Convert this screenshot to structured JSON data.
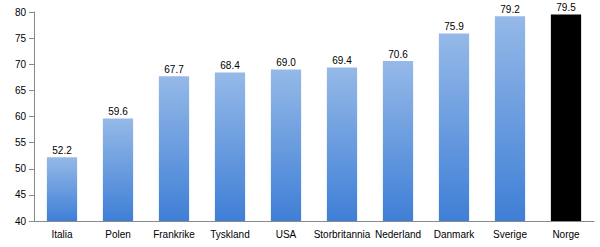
{
  "chart_data": {
    "type": "bar",
    "categories": [
      "Italia",
      "Polen",
      "Frankrike",
      "Tyskland",
      "USA",
      "Storbritannia",
      "Nederland",
      "Danmark",
      "Sverige",
      "Norge"
    ],
    "values": [
      52.2,
      59.6,
      67.7,
      68.4,
      69.0,
      69.4,
      70.6,
      75.9,
      79.2,
      79.5
    ],
    "value_labels": [
      "52.2",
      "59.6",
      "67.7",
      "68.4",
      "69.0",
      "69.4",
      "70.6",
      "75.9",
      "79.2",
      "79.5"
    ],
    "colors": [
      "#3f7fd6",
      "#3f7fd6",
      "#3f7fd6",
      "#3f7fd6",
      "#3f7fd6",
      "#3f7fd6",
      "#3f7fd6",
      "#3f7fd6",
      "#3f7fd6",
      "#000000"
    ],
    "ylim": [
      40,
      80
    ],
    "yticks": [
      40,
      45,
      50,
      55,
      60,
      65,
      70,
      75,
      80
    ],
    "grid": false,
    "data_labels": true
  }
}
